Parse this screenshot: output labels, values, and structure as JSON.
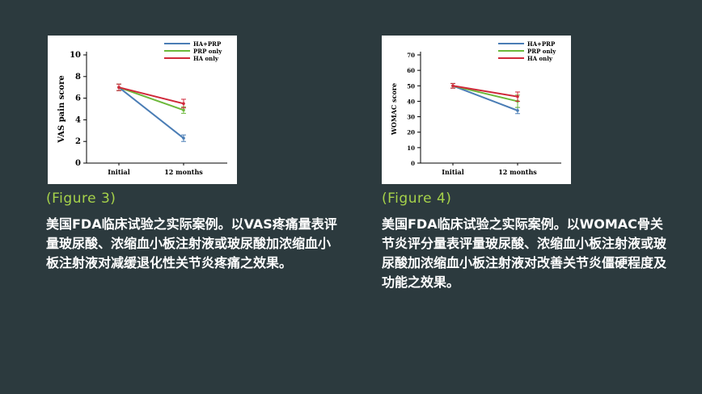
{
  "colors": {
    "background": "#2c3a3e",
    "figure_label": "#a6d24a",
    "caption": "#ffffff"
  },
  "figures": [
    {
      "label": "(Figure 3)",
      "caption": "美国FDA临床试验之实际案例。以VAS疼痛量表评量玻尿酸、浓缩血小板注射液或玻尿酸加浓缩血小板注射液对减缓退化性关节炎疼痛之效果。"
    },
    {
      "label": "(Figure 4)",
      "caption": "美国FDA临床试验之实际案例。以WOMAC骨关节炎评分量表评量玻尿酸、浓缩血小板注射液或玻尿酸加浓缩血小板注射液对改善关节炎僵硬程度及功能之效果。"
    }
  ],
  "chart_data": [
    {
      "type": "line",
      "categories": [
        "Initial",
        "12 months"
      ],
      "ylabel": "VAS pain score",
      "ylim": [
        0,
        10
      ],
      "yticks": [
        0,
        2,
        4,
        6,
        8,
        10
      ],
      "legend_position": "top-right",
      "series": [
        {
          "name": "HA+PRP",
          "color": "#4a7db5",
          "values": [
            7.0,
            2.3
          ],
          "errors": [
            0.3,
            0.3
          ]
        },
        {
          "name": "PRP only",
          "color": "#6cb83a",
          "values": [
            7.0,
            4.9
          ],
          "errors": [
            0.3,
            0.3
          ]
        },
        {
          "name": "HA only",
          "color": "#d0283a",
          "values": [
            7.0,
            5.5
          ],
          "errors": [
            0.3,
            0.4
          ]
        }
      ]
    },
    {
      "type": "line",
      "categories": [
        "Initial",
        "12 months"
      ],
      "ylabel": "WOMAC score",
      "ylim": [
        0,
        70
      ],
      "yticks": [
        0,
        10,
        20,
        30,
        40,
        50,
        60,
        70
      ],
      "legend_position": "top-right",
      "series": [
        {
          "name": "HA+PRP",
          "color": "#4a7db5",
          "values": [
            50,
            34
          ],
          "errors": [
            1.5,
            2
          ]
        },
        {
          "name": "PRP only",
          "color": "#6cb83a",
          "values": [
            50,
            40
          ],
          "errors": [
            1.5,
            4
          ]
        },
        {
          "name": "HA only",
          "color": "#d0283a",
          "values": [
            50,
            43
          ],
          "errors": [
            1.5,
            3
          ]
        }
      ]
    }
  ]
}
